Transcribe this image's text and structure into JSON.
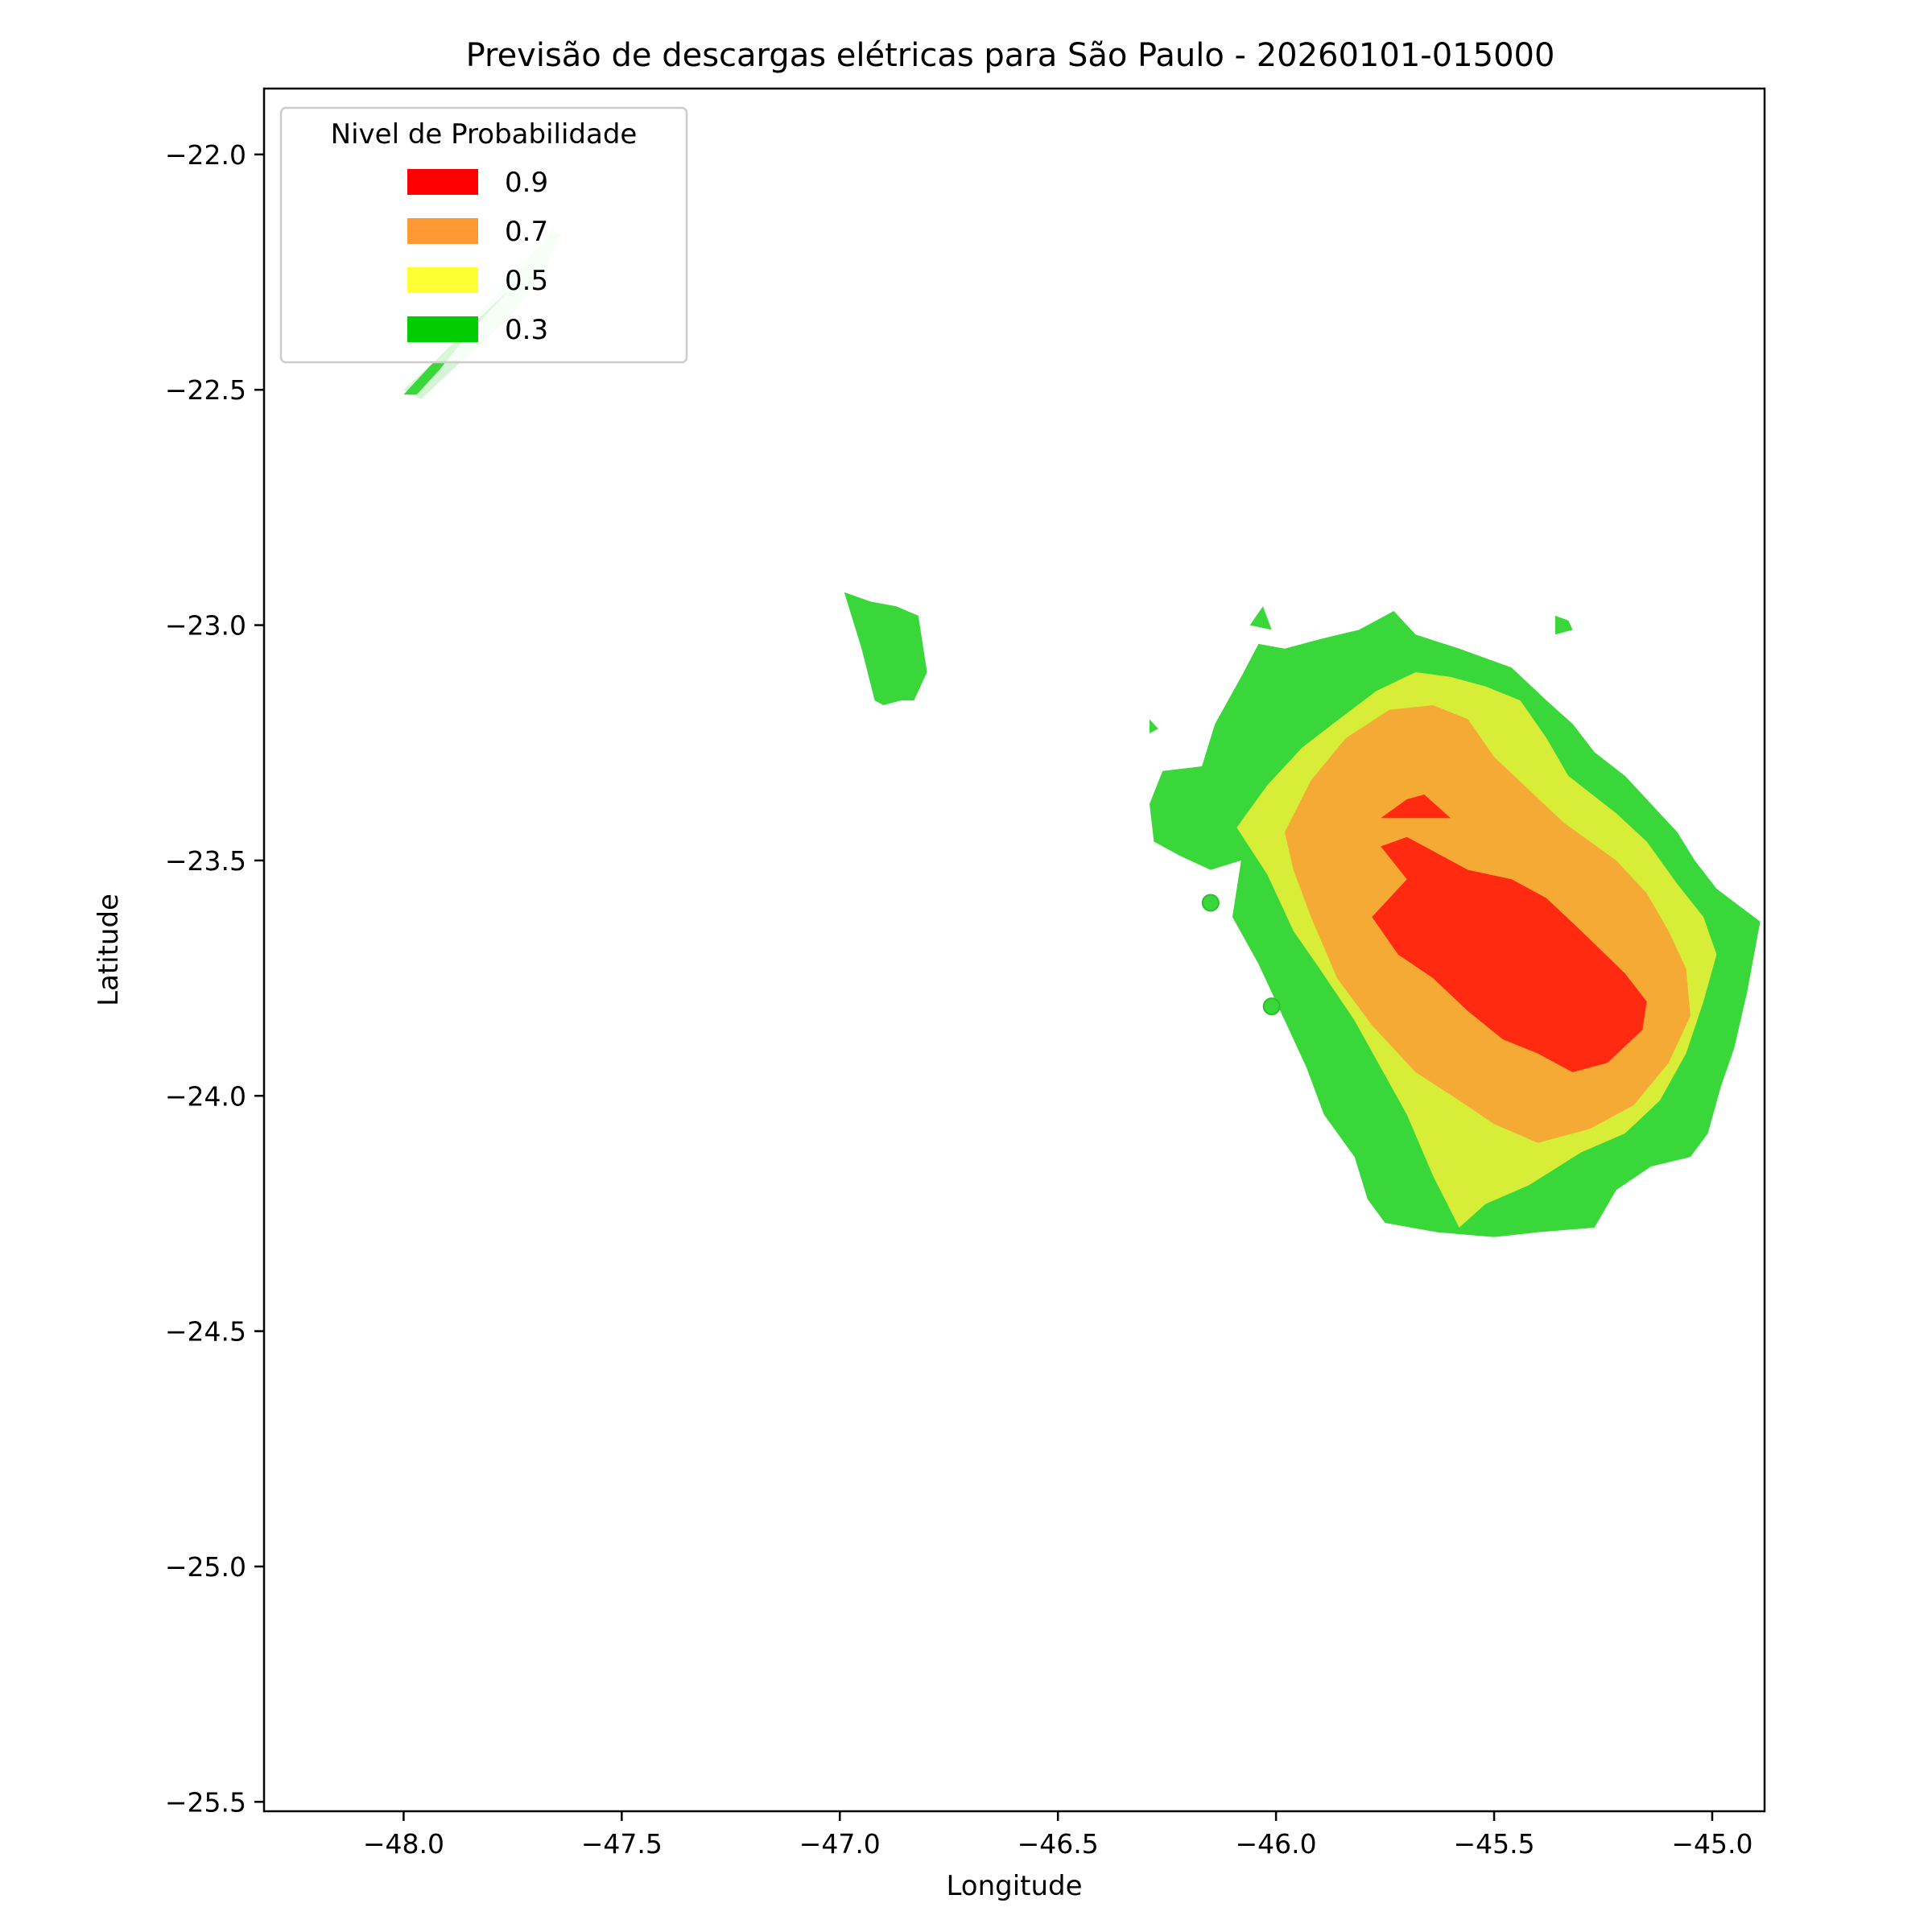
{
  "chart_data": {
    "type": "heatmap",
    "title": "Previsão de descargas elétricas para São Paulo - 20260101-015000",
    "xlabel": "Longitude",
    "ylabel": "Latitude",
    "xlim": [
      -48.32,
      -44.88
    ],
    "ylim": [
      -25.52,
      -21.86
    ],
    "x_ticks": [
      -48.0,
      -47.5,
      -47.0,
      -46.5,
      -46.0,
      -45.5,
      -45.0
    ],
    "x_tick_labels": [
      "−48.0",
      "−47.5",
      "−47.0",
      "−46.5",
      "−46.0",
      "−45.5",
      "−45.0"
    ],
    "y_ticks": [
      -22.0,
      -22.5,
      -23.0,
      -23.5,
      -24.0,
      -24.5,
      -25.0,
      -25.5
    ],
    "y_tick_labels": [
      "−22.0",
      "−22.5",
      "−23.0",
      "−23.5",
      "−24.0",
      "−24.5",
      "−25.0",
      "−25.5"
    ],
    "grid": false,
    "legend": {
      "title": "Nivel de Probabilidade",
      "placement": "upper-left",
      "entries": [
        {
          "label": "0.9",
          "color": "#ff0000"
        },
        {
          "label": "0.7",
          "color": "#ff9933"
        },
        {
          "label": "0.5",
          "color": "#ffff33"
        },
        {
          "label": "0.3",
          "color": "#00cc00"
        }
      ]
    },
    "fill_colors": {
      "0.9": "#ff2a10",
      "0.7": "#f5aa35",
      "0.5": "#d7ed38",
      "0.3": "#39d739",
      "faint": "#d6f4d6"
    },
    "regions": [
      {
        "level": "faint",
        "points": [
          [
            -48.0,
            -22.5
          ],
          [
            -47.93,
            -22.44
          ],
          [
            -47.82,
            -22.33
          ],
          [
            -47.73,
            -22.24
          ],
          [
            -47.66,
            -22.16
          ],
          [
            -47.64,
            -22.17
          ],
          [
            -47.68,
            -22.25
          ],
          [
            -47.76,
            -22.35
          ],
          [
            -47.88,
            -22.45
          ],
          [
            -47.96,
            -22.52
          ]
        ]
      },
      {
        "level": "0.3",
        "points": [
          [
            -48.0,
            -22.51
          ],
          [
            -47.94,
            -22.45
          ],
          [
            -47.83,
            -22.35
          ],
          [
            -47.76,
            -22.29
          ],
          [
            -47.78,
            -22.31
          ],
          [
            -47.85,
            -22.38
          ],
          [
            -47.92,
            -22.46
          ],
          [
            -47.97,
            -22.51
          ]
        ]
      },
      {
        "level": "0.3",
        "points": [
          [
            -46.99,
            -22.93
          ],
          [
            -46.93,
            -22.95
          ],
          [
            -46.87,
            -22.96
          ],
          [
            -46.82,
            -22.98
          ],
          [
            -46.8,
            -23.1
          ],
          [
            -46.83,
            -23.16
          ],
          [
            -46.86,
            -23.16
          ],
          [
            -46.9,
            -23.17
          ],
          [
            -46.92,
            -23.16
          ],
          [
            -46.95,
            -23.05
          ]
        ]
      },
      {
        "level": "0.3",
        "points": [
          [
            -45.36,
            -22.98
          ],
          [
            -45.33,
            -22.99
          ],
          [
            -45.32,
            -23.01
          ],
          [
            -45.36,
            -23.02
          ]
        ]
      },
      {
        "level": "0.3",
        "points": [
          [
            -46.29,
            -23.38
          ],
          [
            -46.26,
            -23.31
          ],
          [
            -46.17,
            -23.3
          ],
          [
            -46.14,
            -23.21
          ],
          [
            -46.08,
            -23.11
          ],
          [
            -46.04,
            -23.04
          ],
          [
            -45.98,
            -23.05
          ],
          [
            -45.9,
            -23.03
          ],
          [
            -45.81,
            -23.01
          ],
          [
            -45.73,
            -22.97
          ],
          [
            -45.68,
            -23.02
          ],
          [
            -45.58,
            -23.05
          ],
          [
            -45.46,
            -23.09
          ],
          [
            -45.38,
            -23.16
          ],
          [
            -45.32,
            -23.21
          ],
          [
            -45.27,
            -23.27
          ],
          [
            -45.2,
            -23.32
          ],
          [
            -45.14,
            -23.38
          ],
          [
            -45.08,
            -23.44
          ],
          [
            -45.04,
            -23.5
          ],
          [
            -44.99,
            -23.56
          ],
          [
            -44.89,
            -23.63
          ],
          [
            -44.92,
            -23.78
          ],
          [
            -44.95,
            -23.9
          ],
          [
            -44.98,
            -23.98
          ],
          [
            -45.01,
            -24.08
          ],
          [
            -45.05,
            -24.13
          ],
          [
            -45.14,
            -24.15
          ],
          [
            -45.22,
            -24.2
          ],
          [
            -45.27,
            -24.28
          ],
          [
            -45.4,
            -24.29
          ],
          [
            -45.5,
            -24.3
          ],
          [
            -45.63,
            -24.29
          ],
          [
            -45.75,
            -24.27
          ],
          [
            -45.79,
            -24.22
          ],
          [
            -45.82,
            -24.13
          ],
          [
            -45.89,
            -24.04
          ],
          [
            -45.93,
            -23.94
          ],
          [
            -45.98,
            -23.84
          ],
          [
            -46.04,
            -23.72
          ],
          [
            -46.1,
            -23.62
          ],
          [
            -46.08,
            -23.5
          ],
          [
            -46.15,
            -23.52
          ],
          [
            -46.22,
            -23.49
          ],
          [
            -46.28,
            -23.46
          ]
        ]
      },
      {
        "level": "0.3",
        "points": [
          [
            -46.03,
            -22.96
          ],
          [
            -46.01,
            -23.01
          ],
          [
            -46.06,
            -23.0
          ]
        ]
      },
      {
        "level": "0.3",
        "points": [
          [
            -46.29,
            -23.2
          ],
          [
            -46.27,
            -23.22
          ],
          [
            -46.29,
            -23.23
          ]
        ]
      },
      {
        "level": "0.5",
        "points": [
          [
            -46.09,
            -23.43
          ],
          [
            -46.02,
            -23.34
          ],
          [
            -45.94,
            -23.26
          ],
          [
            -45.87,
            -23.21
          ],
          [
            -45.77,
            -23.14
          ],
          [
            -45.68,
            -23.1
          ],
          [
            -45.6,
            -23.11
          ],
          [
            -45.52,
            -23.13
          ],
          [
            -45.44,
            -23.16
          ],
          [
            -45.38,
            -23.24
          ],
          [
            -45.33,
            -23.32
          ],
          [
            -45.22,
            -23.4
          ],
          [
            -45.15,
            -23.46
          ],
          [
            -45.08,
            -23.55
          ],
          [
            -45.02,
            -23.62
          ],
          [
            -44.99,
            -23.7
          ],
          [
            -45.02,
            -23.8
          ],
          [
            -45.06,
            -23.91
          ],
          [
            -45.12,
            -24.01
          ],
          [
            -45.2,
            -24.08
          ],
          [
            -45.3,
            -24.12
          ],
          [
            -45.42,
            -24.19
          ],
          [
            -45.52,
            -24.23
          ],
          [
            -45.58,
            -24.28
          ],
          [
            -45.64,
            -24.17
          ],
          [
            -45.7,
            -24.04
          ],
          [
            -45.76,
            -23.94
          ],
          [
            -45.82,
            -23.84
          ],
          [
            -45.9,
            -23.73
          ],
          [
            -45.96,
            -23.65
          ],
          [
            -46.02,
            -23.53
          ]
        ]
      },
      {
        "level": "0.7",
        "points": [
          [
            -45.98,
            -23.44
          ],
          [
            -45.92,
            -23.33
          ],
          [
            -45.84,
            -23.24
          ],
          [
            -45.74,
            -23.18
          ],
          [
            -45.64,
            -23.17
          ],
          [
            -45.56,
            -23.2
          ],
          [
            -45.5,
            -23.28
          ],
          [
            -45.42,
            -23.35
          ],
          [
            -45.34,
            -23.42
          ],
          [
            -45.22,
            -23.5
          ],
          [
            -45.15,
            -23.57
          ],
          [
            -45.1,
            -23.65
          ],
          [
            -45.06,
            -23.73
          ],
          [
            -45.05,
            -23.83
          ],
          [
            -45.1,
            -23.93
          ],
          [
            -45.18,
            -24.02
          ],
          [
            -45.28,
            -24.07
          ],
          [
            -45.4,
            -24.1
          ],
          [
            -45.5,
            -24.06
          ],
          [
            -45.58,
            -24.01
          ],
          [
            -45.68,
            -23.95
          ],
          [
            -45.78,
            -23.85
          ],
          [
            -45.86,
            -23.75
          ],
          [
            -45.92,
            -23.62
          ],
          [
            -45.96,
            -23.52
          ]
        ]
      },
      {
        "level": "0.9",
        "points": [
          [
            -45.76,
            -23.47
          ],
          [
            -45.7,
            -23.45
          ],
          [
            -45.64,
            -23.48
          ],
          [
            -45.56,
            -23.52
          ],
          [
            -45.46,
            -23.54
          ],
          [
            -45.38,
            -23.58
          ],
          [
            -45.3,
            -23.65
          ],
          [
            -45.2,
            -23.74
          ],
          [
            -45.15,
            -23.8
          ],
          [
            -45.16,
            -23.86
          ],
          [
            -45.24,
            -23.93
          ],
          [
            -45.32,
            -23.95
          ],
          [
            -45.4,
            -23.91
          ],
          [
            -45.48,
            -23.88
          ],
          [
            -45.56,
            -23.82
          ],
          [
            -45.64,
            -23.75
          ],
          [
            -45.72,
            -23.7
          ],
          [
            -45.78,
            -23.62
          ],
          [
            -45.7,
            -23.54
          ]
        ]
      },
      {
        "level": "0.9",
        "points": [
          [
            -45.76,
            -23.41
          ],
          [
            -45.7,
            -23.37
          ],
          [
            -45.66,
            -23.36
          ],
          [
            -45.6,
            -23.41
          ],
          [
            -45.68,
            -23.41
          ]
        ]
      }
    ],
    "markers": [
      {
        "x": -46.15,
        "y": -23.59,
        "level": "0.3"
      },
      {
        "x": -46.01,
        "y": -23.81,
        "level": "0.3"
      }
    ]
  }
}
